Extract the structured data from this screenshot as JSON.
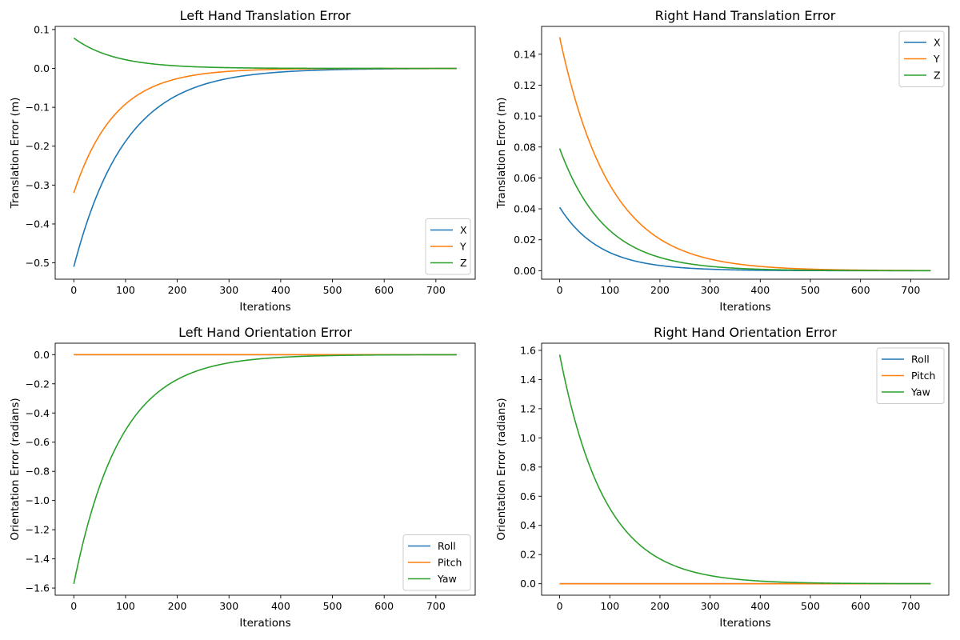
{
  "colors": {
    "c0": "#1f77b4",
    "c1": "#ff7f0e",
    "c2": "#2ca02c"
  },
  "chart_data": [
    {
      "type": "line",
      "title": "Left Hand Translation Error",
      "xlabel": "Iterations",
      "ylabel": "Translation Error (m)",
      "xlim": [
        -36,
        776
      ],
      "ylim": [
        -0.542,
        0.108
      ],
      "xticks": [
        0,
        100,
        200,
        300,
        400,
        500,
        600,
        700
      ],
      "yticks": [
        -0.5,
        -0.4,
        -0.3,
        -0.2,
        -0.1,
        0.0,
        0.1
      ],
      "ytick_labels": [
        "−0.5",
        "−0.4",
        "−0.3",
        "−0.2",
        "−0.1",
        "0.0",
        "0.1"
      ],
      "legend": "lower-right",
      "series": [
        {
          "name": "X",
          "color": "#1f77b4",
          "start": -0.51,
          "tau": 100,
          "end_x": 740
        },
        {
          "name": "Y",
          "color": "#ff7f0e",
          "start": -0.32,
          "tau": 80,
          "end_x": 740
        },
        {
          "name": "Z",
          "color": "#2ca02c",
          "start": 0.078,
          "tau": 80,
          "end_x": 740
        }
      ]
    },
    {
      "type": "line",
      "title": "Right Hand Translation Error",
      "xlabel": "Iterations",
      "ylabel": "Translation Error (m)",
      "xlim": [
        -36,
        776
      ],
      "ylim": [
        -0.0055,
        0.158
      ],
      "xticks": [
        0,
        100,
        200,
        300,
        400,
        500,
        600,
        700
      ],
      "yticks": [
        0.0,
        0.02,
        0.04,
        0.06,
        0.08,
        0.1,
        0.12,
        0.14
      ],
      "ytick_labels": [
        "0.00",
        "0.02",
        "0.04",
        "0.06",
        "0.08",
        "0.10",
        "0.12",
        "0.14"
      ],
      "legend": "upper-right",
      "series": [
        {
          "name": "X",
          "color": "#1f77b4",
          "start": 0.041,
          "tau": 80,
          "end_x": 740
        },
        {
          "name": "Y",
          "color": "#ff7f0e",
          "start": 0.151,
          "tau": 100,
          "end_x": 740
        },
        {
          "name": "Z",
          "color": "#2ca02c",
          "start": 0.079,
          "tau": 90,
          "end_x": 740
        }
      ]
    },
    {
      "type": "line",
      "title": "Left Hand Orientation Error",
      "xlabel": "Iterations",
      "ylabel": "Orientation Error (radians)",
      "xlim": [
        -36,
        776
      ],
      "ylim": [
        -1.649,
        0.0785
      ],
      "xticks": [
        0,
        100,
        200,
        300,
        400,
        500,
        600,
        700
      ],
      "yticks": [
        -1.6,
        -1.4,
        -1.2,
        -1.0,
        -0.8,
        -0.6,
        -0.4,
        -0.2,
        0.0
      ],
      "ytick_labels": [
        "−1.6",
        "−1.4",
        "−1.2",
        "−1.0",
        "−0.8",
        "−0.6",
        "−0.4",
        "−0.2",
        "0.0"
      ],
      "legend": "lower-right",
      "series": [
        {
          "name": "Roll",
          "color": "#1f77b4",
          "start": 0.0,
          "tau": 90,
          "end_x": 740
        },
        {
          "name": "Pitch",
          "color": "#ff7f0e",
          "start": 0.0,
          "tau": 90,
          "end_x": 740
        },
        {
          "name": "Yaw",
          "color": "#2ca02c",
          "start": -1.571,
          "tau": 90,
          "end_x": 740
        }
      ]
    },
    {
      "type": "line",
      "title": "Right Hand Orientation Error",
      "xlabel": "Iterations",
      "ylabel": "Orientation Error (radians)",
      "xlim": [
        -36,
        776
      ],
      "ylim": [
        -0.0785,
        1.649
      ],
      "xticks": [
        0,
        100,
        200,
        300,
        400,
        500,
        600,
        700
      ],
      "yticks": [
        0.0,
        0.2,
        0.4,
        0.6,
        0.8,
        1.0,
        1.2,
        1.4,
        1.6
      ],
      "ytick_labels": [
        "0.0",
        "0.2",
        "0.4",
        "0.6",
        "0.8",
        "1.0",
        "1.2",
        "1.4",
        "1.6"
      ],
      "legend": "upper-right",
      "series": [
        {
          "name": "Roll",
          "color": "#1f77b4",
          "start": 0.0,
          "tau": 90,
          "end_x": 740
        },
        {
          "name": "Pitch",
          "color": "#ff7f0e",
          "start": 0.0,
          "tau": 90,
          "end_x": 740
        },
        {
          "name": "Yaw",
          "color": "#2ca02c",
          "start": 1.571,
          "tau": 90,
          "end_x": 740
        }
      ]
    }
  ]
}
